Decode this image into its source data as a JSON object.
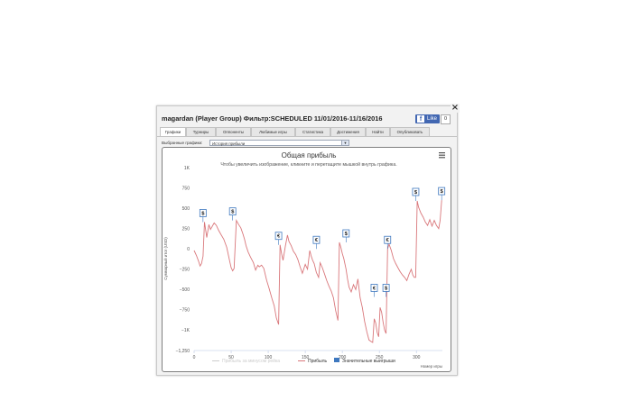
{
  "window": {
    "title": "magardan (Player Group) Фильтр:SCHEDULED 11/01/2016-11/16/2016",
    "close_symbol": "×",
    "like_label": "Like",
    "like_count": "0"
  },
  "tabs": [
    "Графики",
    "Турниры",
    "Оппоненты",
    "Любимые игры",
    "Статистика",
    "Достижения",
    "Найти",
    "Опубликовать"
  ],
  "selector": {
    "label": "Выбранные графики:",
    "value": "История прибыли"
  },
  "chart_data": {
    "type": "line",
    "title": "Общая прибыль",
    "subtitle": "Чтобы увеличить изображение, кликните и перетащите мышкой внутрь графика.",
    "xlabel": "Номер игры",
    "ylabel": "Суммарный итог (USD)",
    "xlim": [
      0,
      335
    ],
    "ylim": [
      -1250,
      1000
    ],
    "x_ticks": [
      0,
      50,
      100,
      150,
      200,
      250,
      300
    ],
    "y_ticks": [
      1000,
      750,
      500,
      250,
      0,
      -250,
      -500,
      -750,
      -1000,
      -1250
    ],
    "y_tick_labels": [
      "1K",
      "750",
      "500",
      "250",
      "0",
      "−250",
      "−500",
      "−750",
      "−1K",
      "−1,250"
    ],
    "grid": false,
    "legend_position": "bottom",
    "legend": [
      "Прибыль за минусом рейка",
      "Прибыль",
      "Значительные выигрыши"
    ],
    "series": [
      {
        "name": "Прибыль",
        "color": "#d9777b",
        "x": [
          0,
          3,
          6,
          8,
          10,
          12,
          14,
          17,
          20,
          22,
          24,
          27,
          30,
          33,
          36,
          40,
          44,
          48,
          50,
          52,
          54,
          57,
          60,
          63,
          66,
          68,
          70,
          73,
          76,
          80,
          83,
          86,
          88,
          91,
          94,
          98,
          101,
          105,
          108,
          111,
          114,
          116,
          118,
          120,
          123,
          126,
          128,
          131,
          134,
          137,
          140,
          143,
          146,
          150,
          153,
          156,
          158,
          160,
          162,
          165,
          168,
          170,
          173,
          176,
          179,
          182,
          185,
          188,
          191,
          194,
          196,
          198,
          200,
          202,
          205,
          207,
          209,
          212,
          215,
          218,
          221,
          224,
          227,
          230,
          233,
          236,
          239,
          241,
          243,
          245,
          247,
          249,
          251,
          253,
          255,
          257,
          259,
          261,
          263,
          266,
          269,
          272,
          275,
          278,
          281,
          284,
          287,
          290,
          293,
          295,
          297,
          299,
          301,
          303,
          306,
          309,
          312,
          315,
          318,
          321,
          324,
          327,
          330,
          332,
          334
        ],
        "y": [
          -20,
          -80,
          -150,
          -210,
          -180,
          -90,
          330,
          140,
          300,
          240,
          270,
          320,
          290,
          230,
          180,
          120,
          20,
          -150,
          -230,
          -270,
          -240,
          350,
          300,
          260,
          180,
          120,
          40,
          -40,
          -100,
          -170,
          -260,
          -200,
          -220,
          -200,
          -240,
          -390,
          -480,
          -610,
          -700,
          -850,
          -930,
          50,
          -60,
          -140,
          30,
          170,
          90,
          40,
          -30,
          -70,
          -130,
          -220,
          -300,
          -190,
          -250,
          -20,
          -90,
          -140,
          -180,
          -290,
          -350,
          -170,
          -230,
          -310,
          -390,
          -460,
          -520,
          -600,
          -760,
          -880,
          80,
          20,
          -60,
          -120,
          -250,
          -370,
          -470,
          -530,
          -440,
          -500,
          -370,
          -600,
          -720,
          -890,
          -1020,
          -1120,
          -1140,
          -1150,
          -860,
          -910,
          -1030,
          -1080,
          -720,
          -780,
          -900,
          -1000,
          -1040,
          0,
          60,
          -20,
          -120,
          -180,
          -230,
          -280,
          -320,
          -350,
          -390,
          -310,
          -250,
          -320,
          -350,
          -350,
          590,
          510,
          440,
          390,
          330,
          290,
          360,
          280,
          350,
          290,
          250,
          350,
          600
        ]
      },
      {
        "name": "Значительные выигрыши",
        "color": "#3e78bf",
        "points": [
          {
            "x": 12,
            "y": 330,
            "symbol": "$"
          },
          {
            "x": 52,
            "y": 350,
            "symbol": "$"
          },
          {
            "x": 114,
            "y": 50,
            "symbol": "€"
          },
          {
            "x": 165,
            "y": 0,
            "symbol": "€"
          },
          {
            "x": 205,
            "y": 80,
            "symbol": "$"
          },
          {
            "x": 243,
            "y": -590,
            "symbol": "€"
          },
          {
            "x": 259,
            "y": -590,
            "symbol": "$"
          },
          {
            "x": 261,
            "y": 0,
            "symbol": "€"
          },
          {
            "x": 299,
            "y": 590,
            "symbol": "$"
          },
          {
            "x": 334,
            "y": 600,
            "symbol": "$"
          }
        ]
      }
    ]
  },
  "icons": {
    "menu": "hamburger-menu-icon",
    "close": "close-icon",
    "facebook": "facebook-icon"
  }
}
